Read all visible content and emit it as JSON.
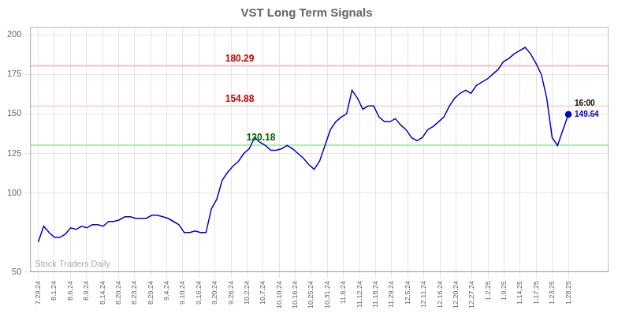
{
  "chart_data": {
    "type": "line",
    "title": "VST Long Term Signals",
    "background_color": "#ffffff",
    "xlim": [
      -0.5,
      35.5
    ],
    "xticks": [
      {
        "value": 0,
        "label": "7.29.24"
      },
      {
        "value": 1,
        "label": "8.1.24"
      },
      {
        "value": 2,
        "label": "8.6.24"
      },
      {
        "value": 3,
        "label": "8.9.24"
      },
      {
        "value": 4,
        "label": "8.14.24"
      },
      {
        "value": 5,
        "label": "8.20.24"
      },
      {
        "value": 6,
        "label": "8.23.24"
      },
      {
        "value": 7,
        "label": "8.29.24"
      },
      {
        "value": 8,
        "label": "9.4.24"
      },
      {
        "value": 9,
        "label": "9.10.24"
      },
      {
        "value": 10,
        "label": "9.16.24"
      },
      {
        "value": 11,
        "label": "9.20.24"
      },
      {
        "value": 12,
        "label": "9.26.24"
      },
      {
        "value": 13,
        "label": "10.2.24"
      },
      {
        "value": 14,
        "label": "10.7.24"
      },
      {
        "value": 15,
        "label": "10.10.24"
      },
      {
        "value": 16,
        "label": "10.16.24"
      },
      {
        "value": 17,
        "label": "10.25.24"
      },
      {
        "value": 18,
        "label": "10.31.24"
      },
      {
        "value": 19,
        "label": "11.6.24"
      },
      {
        "value": 20,
        "label": "11.12.24"
      },
      {
        "value": 21,
        "label": "11.18.24"
      },
      {
        "value": 22,
        "label": "11.29.24"
      },
      {
        "value": 23,
        "label": "12.5.24"
      },
      {
        "value": 24,
        "label": "12.11.24"
      },
      {
        "value": 25,
        "label": "12.16.24"
      },
      {
        "value": 26,
        "label": "12.20.24"
      },
      {
        "value": 27,
        "label": "12.27.24"
      },
      {
        "value": 28,
        "label": "1.2.25"
      },
      {
        "value": 29,
        "label": "1.9.25"
      },
      {
        "value": 30,
        "label": "1.14.25"
      },
      {
        "value": 31,
        "label": "1.17.25"
      },
      {
        "value": 32,
        "label": "1.23.25"
      },
      {
        "value": 33,
        "label": "1.28.25"
      }
    ],
    "ylim": [
      50,
      205
    ],
    "yticks": [
      50,
      100,
      125,
      150,
      175,
      200
    ],
    "grid": true,
    "series": [
      {
        "color": "#0000cc",
        "values": [
          69,
          79,
          75,
          72,
          72,
          74,
          78,
          77,
          79,
          78,
          80,
          80,
          79,
          82,
          82,
          83,
          85,
          85,
          84,
          84,
          84,
          86,
          86,
          85,
          84,
          82,
          80,
          75,
          75,
          76,
          75,
          75,
          90,
          96,
          108,
          113,
          117,
          120,
          125,
          128,
          135,
          132,
          130,
          127,
          127,
          128,
          130,
          128,
          125,
          122,
          118,
          115,
          120,
          130,
          140,
          145,
          148,
          150,
          165,
          160,
          153,
          155,
          155,
          148,
          145,
          145,
          147,
          143,
          140,
          135,
          133,
          135,
          140,
          142,
          145,
          148,
          155,
          160,
          163,
          165,
          163,
          168,
          170,
          172,
          175,
          178,
          183,
          185,
          188,
          190,
          192,
          188,
          182,
          175,
          160,
          135,
          130,
          140,
          149.64
        ]
      }
    ],
    "hlines": [
      {
        "value": 180.29,
        "color": "#ffaaaa",
        "label": "180.29",
        "label_color": "#cc0000"
      },
      {
        "value": 154.88,
        "color": "#ffcccc",
        "label": "154.88",
        "label_color": "#cc0000"
      },
      {
        "value": 130.18,
        "color": "#90ee90",
        "label": "130.18",
        "label_color": "#006600"
      }
    ],
    "annotations": [
      {
        "text": "16:00",
        "color": "#000000",
        "anchor": "end_time"
      },
      {
        "text": "149.64",
        "color": "#0000cc",
        "anchor": "end_price"
      },
      {
        "text": "Stock Traders Daily",
        "color": "#aaaaaa",
        "anchor": "watermark"
      }
    ]
  }
}
